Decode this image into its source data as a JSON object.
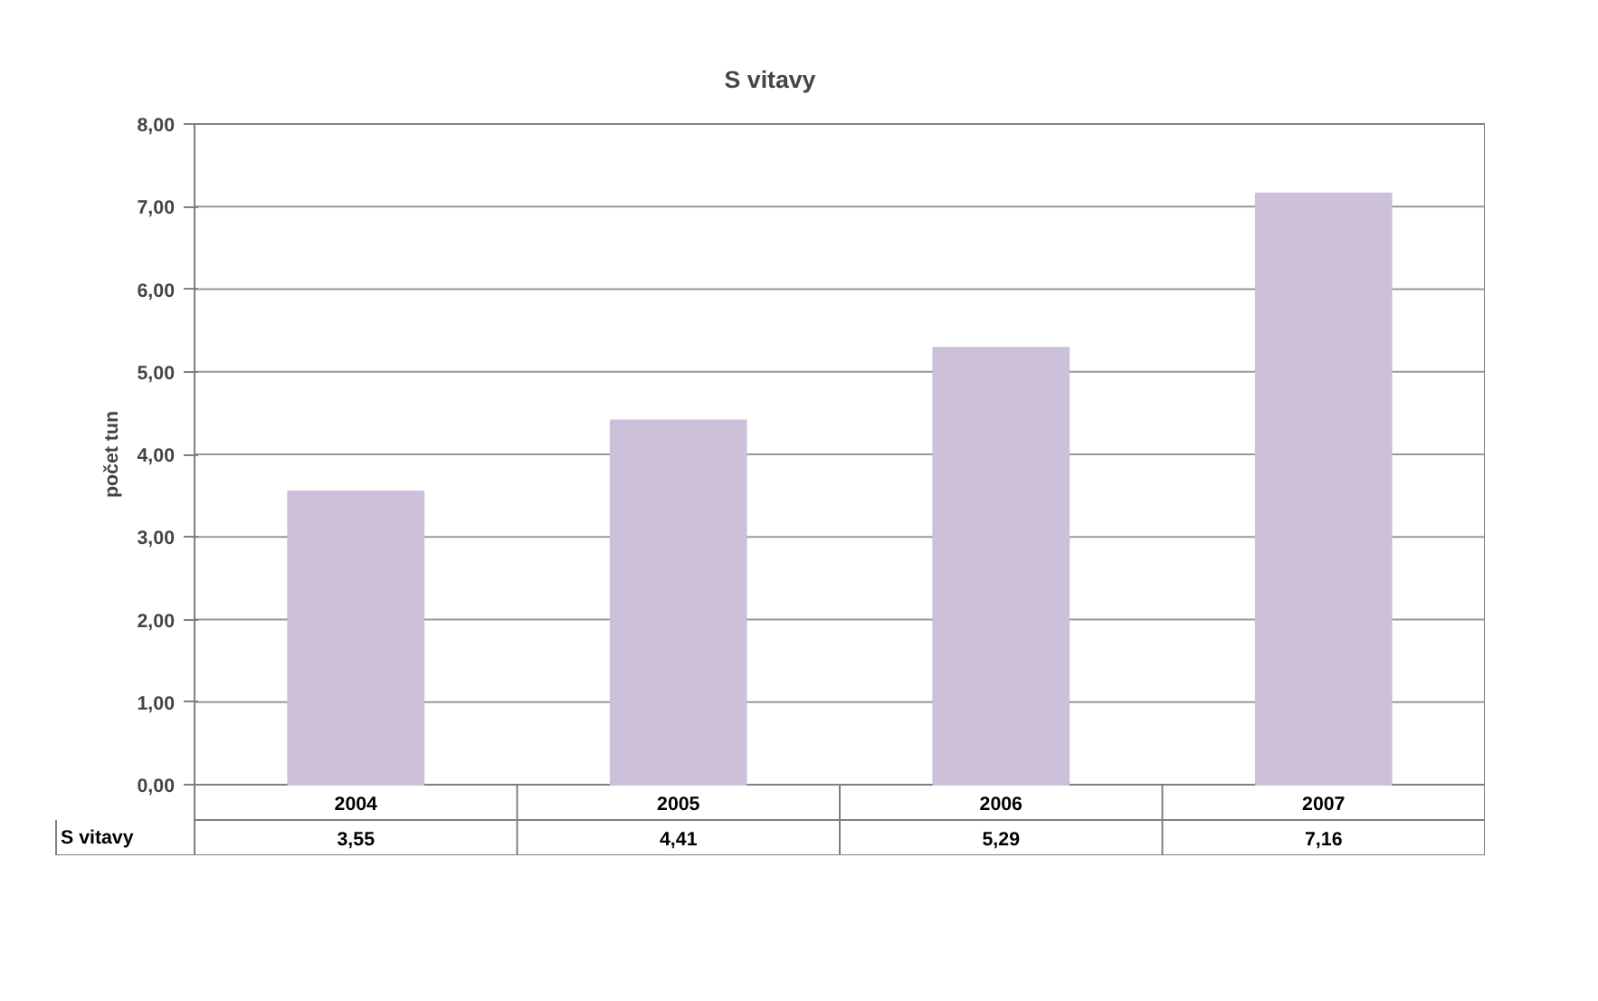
{
  "chart_data": {
    "type": "bar",
    "title": "S vitavy",
    "ylabel": "počet tun",
    "categories": [
      "2004",
      "2005",
      "2006",
      "2007"
    ],
    "series": [
      {
        "name": "S vitavy",
        "color": "#ccc0da",
        "values": [
          3.55,
          4.41,
          5.29,
          7.16
        ],
        "value_labels": [
          "3,55",
          "4,41",
          "5,29",
          "7,16"
        ]
      }
    ],
    "ylim": [
      0,
      8
    ],
    "yticks": [
      {
        "value": 0,
        "label": "0,00"
      },
      {
        "value": 1,
        "label": "1,00"
      },
      {
        "value": 2,
        "label": "2,00"
      },
      {
        "value": 3,
        "label": "3,00"
      },
      {
        "value": 4,
        "label": "4,00"
      },
      {
        "value": 5,
        "label": "5,00"
      },
      {
        "value": 6,
        "label": "6,00"
      },
      {
        "value": 7,
        "label": "7,00"
      },
      {
        "value": 8,
        "label": "8,00"
      }
    ],
    "grid": "y"
  }
}
